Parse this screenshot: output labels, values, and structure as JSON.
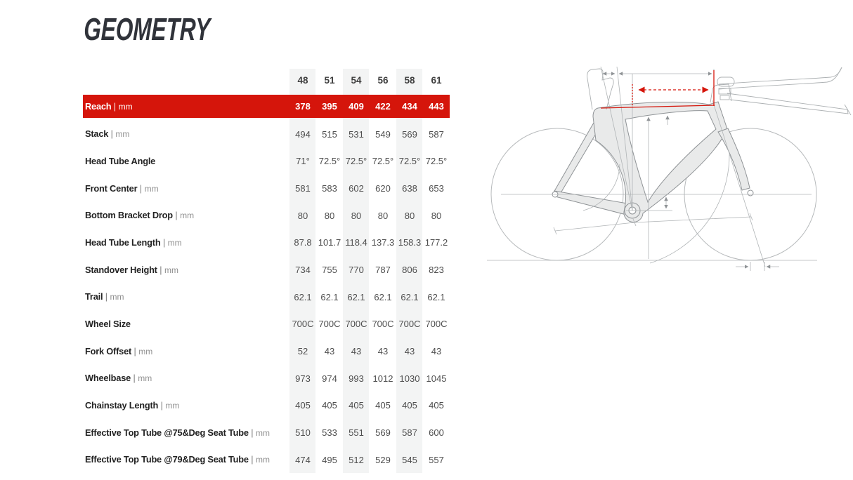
{
  "title": "GEOMETRY",
  "table": {
    "size_header": [
      "48",
      "51",
      "54",
      "56",
      "58",
      "61"
    ],
    "rows": [
      {
        "label": "Reach",
        "unit": "mm",
        "highlight": true,
        "values": [
          "378",
          "395",
          "409",
          "422",
          "434",
          "443"
        ]
      },
      {
        "label": "Stack",
        "unit": "mm",
        "values": [
          "494",
          "515",
          "531",
          "549",
          "569",
          "587"
        ]
      },
      {
        "label": "Head Tube Angle",
        "unit": "",
        "values": [
          "71°",
          "72.5°",
          "72.5°",
          "72.5°",
          "72.5°",
          "72.5°"
        ]
      },
      {
        "label": "Front Center",
        "unit": "mm",
        "values": [
          "581",
          "583",
          "602",
          "620",
          "638",
          "653"
        ]
      },
      {
        "label": "Bottom Bracket Drop",
        "unit": "mm",
        "values": [
          "80",
          "80",
          "80",
          "80",
          "80",
          "80"
        ]
      },
      {
        "label": "Head Tube Length",
        "unit": "mm",
        "values": [
          "87.8",
          "101.7",
          "118.4",
          "137.3",
          "158.3",
          "177.2"
        ]
      },
      {
        "label": "Standover Height",
        "unit": "mm",
        "values": [
          "734",
          "755",
          "770",
          "787",
          "806",
          "823"
        ]
      },
      {
        "label": "Trail",
        "unit": "mm",
        "values": [
          "62.1",
          "62.1",
          "62.1",
          "62.1",
          "62.1",
          "62.1"
        ]
      },
      {
        "label": "Wheel Size",
        "unit": "",
        "values": [
          "700C",
          "700C",
          "700C",
          "700C",
          "700C",
          "700C"
        ]
      },
      {
        "label": "Fork Offset",
        "unit": "mm",
        "values": [
          "52",
          "43",
          "43",
          "43",
          "43",
          "43"
        ]
      },
      {
        "label": "Wheelbase",
        "unit": "mm",
        "values": [
          "973",
          "974",
          "993",
          "1012",
          "1030",
          "1045"
        ]
      },
      {
        "label": "Chainstay Length",
        "unit": "mm",
        "values": [
          "405",
          "405",
          "405",
          "405",
          "405",
          "405"
        ]
      },
      {
        "label": "Effective Top Tube @75&Deg Seat Tube",
        "unit": "mm",
        "values": [
          "510",
          "533",
          "551",
          "569",
          "587",
          "600"
        ]
      },
      {
        "label": "Effective Top Tube @79&Deg Seat Tube",
        "unit": "mm",
        "values": [
          "474",
          "495",
          "512",
          "529",
          "545",
          "557"
        ]
      }
    ]
  },
  "diagram": {
    "subject": "triathlon-bike-frame-side-view",
    "highlighted_dimension": "Reach"
  },
  "colors": {
    "accent_red": "#d5150b",
    "stripe_gray": "#f3f4f4",
    "title_text": "#30333a",
    "label_text": "#232323",
    "value_text": "#4e4e4e",
    "diagram_lines": "#b0b4b6",
    "frame_fill": "#e9eaea"
  }
}
